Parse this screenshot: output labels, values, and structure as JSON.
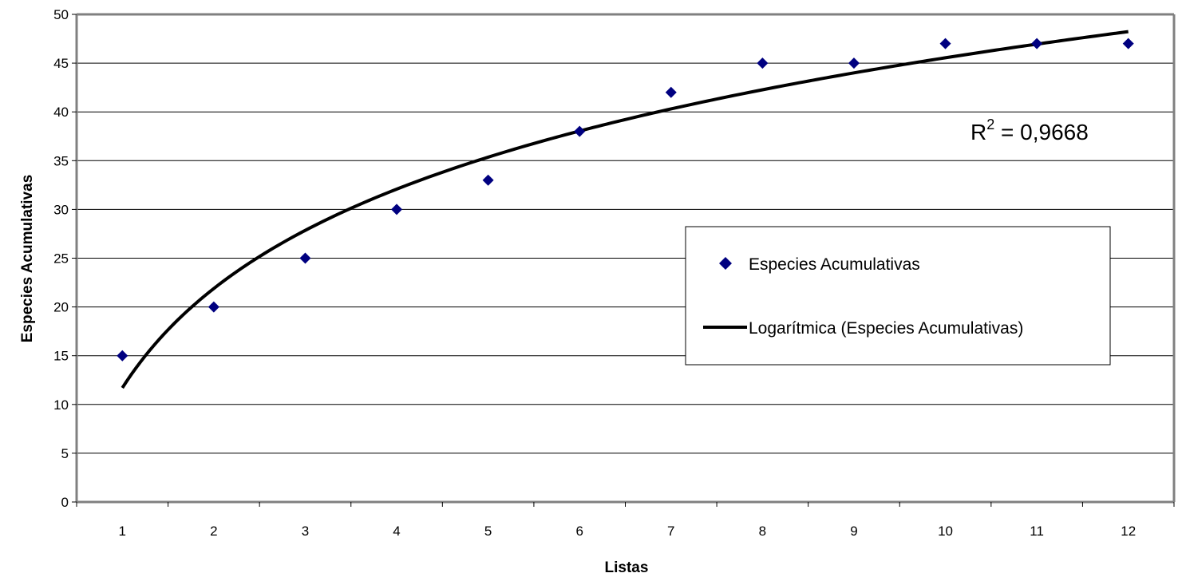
{
  "chart_data": {
    "type": "scatter",
    "xlabel": "Listas",
    "ylabel": "Especies Acumulativas",
    "categories": [
      "1",
      "2",
      "3",
      "4",
      "5",
      "6",
      "7",
      "8",
      "9",
      "10",
      "11",
      "12"
    ],
    "ylim": [
      0,
      50
    ],
    "yticks": [
      "0",
      "5",
      "10",
      "15",
      "20",
      "25",
      "30",
      "35",
      "40",
      "45",
      "50"
    ],
    "grid": true,
    "legend_position": "right",
    "series": [
      {
        "name": "Especies Acumulativas",
        "marker": "diamond",
        "color": "#000080",
        "x": [
          1,
          2,
          3,
          4,
          5,
          6,
          7,
          8,
          9,
          10,
          11,
          12
        ],
        "values": [
          15,
          20,
          25,
          30,
          33,
          38,
          42,
          45,
          45,
          47,
          47,
          47
        ]
      }
    ],
    "trendline": {
      "name": "Logarítmica (Especies Acumulativas)",
      "type": "logarithmic",
      "color": "#000000",
      "coef_a": 14.7,
      "intercept": 11.7,
      "r2_base": "R",
      "r2_exponent": "2",
      "r2_value": " = 0,9668"
    }
  }
}
